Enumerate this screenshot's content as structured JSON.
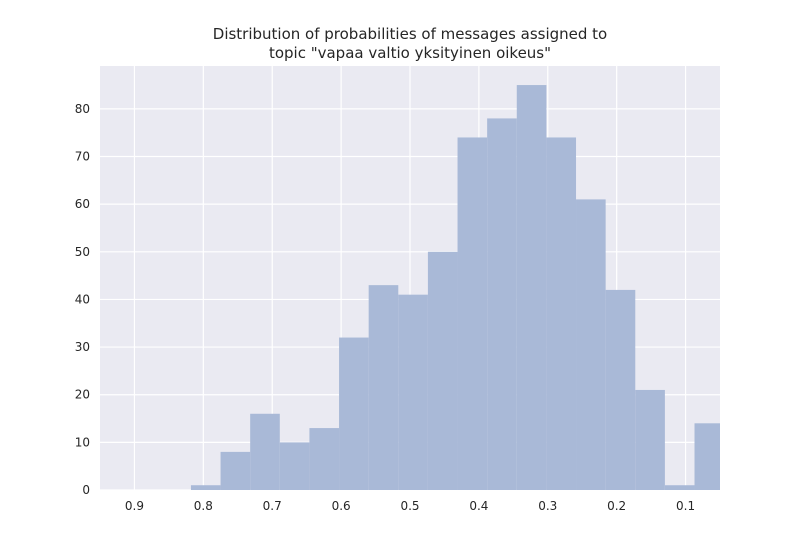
{
  "chart_data": {
    "type": "bar",
    "title": "Distribution of probabilities of messages assigned to topic \"vapaa valtio yksityinen oikeus\"",
    "title_lines": [
      "Distribution of probabilities of messages assigned to",
      "topic \"vapaa valtio yksityinen oikeus\""
    ],
    "xlabel": "",
    "ylabel": "",
    "x_axis_reversed": true,
    "xlim": [
      0.95,
      0.05
    ],
    "ylim": [
      0,
      89
    ],
    "x_ticks": [
      0.9,
      0.8,
      0.7,
      0.6,
      0.5,
      0.4,
      0.3,
      0.2,
      0.1
    ],
    "x_tick_labels": [
      "0.9",
      "0.8",
      "0.7",
      "0.6",
      "0.5",
      "0.4",
      "0.3",
      "0.2",
      "0.1"
    ],
    "y_ticks": [
      0,
      10,
      20,
      30,
      40,
      50,
      60,
      70,
      80
    ],
    "y_tick_labels": [
      "0",
      "10",
      "20",
      "30",
      "40",
      "50",
      "60",
      "70",
      "80"
    ],
    "grid": true,
    "bin_edges": [
      0.818,
      0.775,
      0.732,
      0.689,
      0.646,
      0.603,
      0.56,
      0.517,
      0.474,
      0.431,
      0.388,
      0.345,
      0.302,
      0.259,
      0.216,
      0.173,
      0.13,
      0.087,
      0.05
    ],
    "values": [
      1,
      8,
      16,
      10,
      13,
      32,
      43,
      41,
      50,
      74,
      78,
      85,
      74,
      61,
      42,
      21,
      1,
      14
    ],
    "colors": {
      "bar": "#a9b9d7",
      "plot_background": "#eaeaf2",
      "grid": "#ffffff",
      "text": "#262626"
    }
  }
}
